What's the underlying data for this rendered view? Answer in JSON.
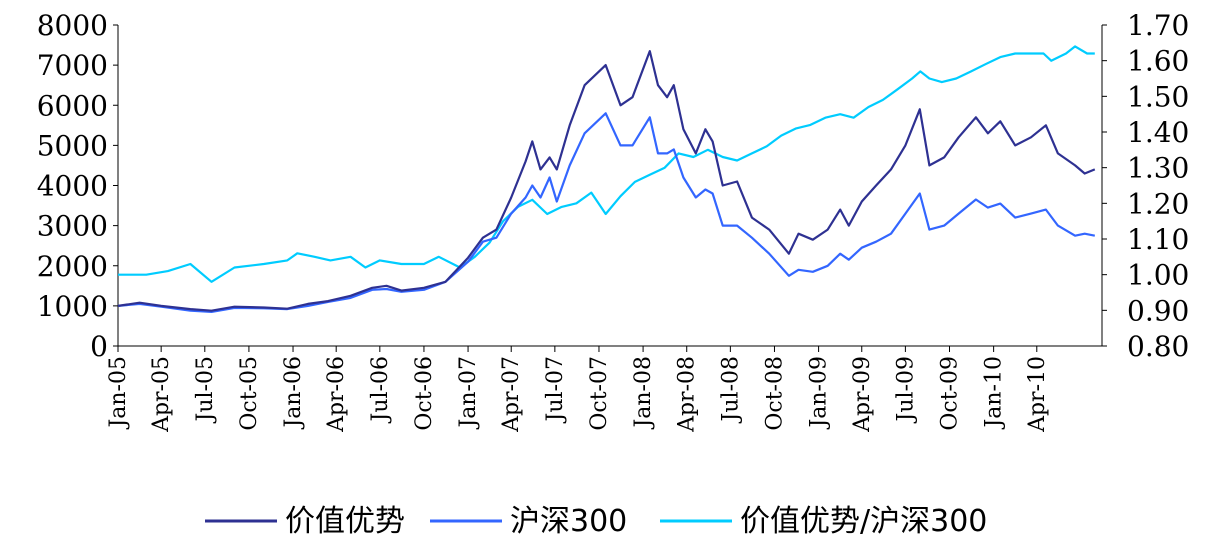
{
  "chart_data": {
    "type": "line",
    "title": "",
    "xlabel": "",
    "ylabel": "",
    "x_ticks": [
      "Jan-05",
      "Apr-05",
      "Jul-05",
      "Oct-05",
      "Jan-06",
      "Apr-06",
      "Jul-06",
      "Oct-06",
      "Jan-07",
      "Apr-07",
      "Jul-07",
      "Oct-07",
      "Jan-08",
      "Apr-08",
      "Jul-08",
      "Oct-08",
      "Jan-09",
      "Apr-09",
      "Jul-09",
      "Oct-09",
      "Jan-10",
      "Apr-10"
    ],
    "x_range": [
      "2005-01-01",
      "2010-08-15"
    ],
    "y_left": {
      "ylim": [
        0,
        8000
      ],
      "ticks": [
        "0",
        "1000",
        "2000",
        "3000",
        "4000",
        "5000",
        "6000",
        "7000",
        "8000"
      ]
    },
    "y_right": {
      "ylim": [
        0.8,
        1.7
      ],
      "ticks": [
        "0.80",
        "0.90",
        "1.00",
        "1.10",
        "1.20",
        "1.30",
        "1.40",
        "1.50",
        "1.60",
        "1.70"
      ]
    },
    "grid": false,
    "legend_position": "bottom",
    "series": [
      {
        "name": "价值优势",
        "axis": "left",
        "color": "#2E3192",
        "points": [
          [
            "2005-01-01",
            1000
          ],
          [
            "2005-02-15",
            1080
          ],
          [
            "2005-04-01",
            1000
          ],
          [
            "2005-06-01",
            920
          ],
          [
            "2005-07-15",
            880
          ],
          [
            "2005-09-01",
            980
          ],
          [
            "2005-11-01",
            960
          ],
          [
            "2005-12-20",
            930
          ],
          [
            "2006-02-01",
            1050
          ],
          [
            "2006-03-15",
            1120
          ],
          [
            "2006-05-01",
            1250
          ],
          [
            "2006-06-15",
            1450
          ],
          [
            "2006-07-15",
            1500
          ],
          [
            "2006-08-15",
            1380
          ],
          [
            "2006-10-01",
            1450
          ],
          [
            "2006-11-15",
            1600
          ],
          [
            "2007-01-01",
            2200
          ],
          [
            "2007-02-01",
            2700
          ],
          [
            "2007-03-01",
            2900
          ],
          [
            "2007-04-01",
            3700
          ],
          [
            "2007-05-01",
            4600
          ],
          [
            "2007-05-15",
            5100
          ],
          [
            "2007-06-01",
            4400
          ],
          [
            "2007-06-20",
            4700
          ],
          [
            "2007-07-05",
            4400
          ],
          [
            "2007-08-01",
            5500
          ],
          [
            "2007-09-01",
            6500
          ],
          [
            "2007-10-15",
            7000
          ],
          [
            "2007-11-15",
            6000
          ],
          [
            "2007-12-10",
            6200
          ],
          [
            "2008-01-15",
            7350
          ],
          [
            "2008-02-01",
            6500
          ],
          [
            "2008-02-20",
            6200
          ],
          [
            "2008-03-05",
            6500
          ],
          [
            "2008-03-25",
            5400
          ],
          [
            "2008-04-20",
            4800
          ],
          [
            "2008-05-10",
            5400
          ],
          [
            "2008-05-25",
            5100
          ],
          [
            "2008-06-15",
            4000
          ],
          [
            "2008-07-15",
            4100
          ],
          [
            "2008-08-15",
            3200
          ],
          [
            "2008-09-20",
            2900
          ],
          [
            "2008-10-31",
            2300
          ],
          [
            "2008-11-20",
            2800
          ],
          [
            "2008-12-20",
            2650
          ],
          [
            "2009-01-20",
            2900
          ],
          [
            "2009-02-15",
            3400
          ],
          [
            "2009-03-05",
            3000
          ],
          [
            "2009-04-01",
            3600
          ],
          [
            "2009-05-01",
            4000
          ],
          [
            "2009-06-01",
            4400
          ],
          [
            "2009-07-01",
            5000
          ],
          [
            "2009-07-31",
            5900
          ],
          [
            "2009-08-20",
            4500
          ],
          [
            "2009-09-20",
            4700
          ],
          [
            "2009-10-20",
            5200
          ],
          [
            "2009-11-25",
            5700
          ],
          [
            "2009-12-20",
            5300
          ],
          [
            "2010-01-15",
            5600
          ],
          [
            "2010-02-15",
            5000
          ],
          [
            "2010-03-20",
            5200
          ],
          [
            "2010-04-20",
            5500
          ],
          [
            "2010-05-15",
            4800
          ],
          [
            "2010-06-20",
            4500
          ],
          [
            "2010-07-10",
            4300
          ],
          [
            "2010-07-31",
            4400
          ]
        ]
      },
      {
        "name": "沪深300",
        "axis": "left",
        "color": "#3366FF",
        "points": [
          [
            "2005-01-01",
            1000
          ],
          [
            "2005-02-15",
            1050
          ],
          [
            "2005-04-01",
            980
          ],
          [
            "2005-06-01",
            880
          ],
          [
            "2005-07-15",
            850
          ],
          [
            "2005-09-01",
            950
          ],
          [
            "2005-11-01",
            940
          ],
          [
            "2005-12-20",
            920
          ],
          [
            "2006-02-01",
            1000
          ],
          [
            "2006-03-15",
            1100
          ],
          [
            "2006-05-01",
            1200
          ],
          [
            "2006-06-15",
            1400
          ],
          [
            "2006-07-15",
            1420
          ],
          [
            "2006-08-15",
            1350
          ],
          [
            "2006-10-01",
            1400
          ],
          [
            "2006-11-15",
            1600
          ],
          [
            "2007-01-01",
            2100
          ],
          [
            "2007-02-01",
            2600
          ],
          [
            "2007-03-01",
            2700
          ],
          [
            "2007-04-01",
            3300
          ],
          [
            "2007-05-01",
            3700
          ],
          [
            "2007-05-15",
            4000
          ],
          [
            "2007-06-01",
            3700
          ],
          [
            "2007-06-20",
            4200
          ],
          [
            "2007-07-05",
            3600
          ],
          [
            "2007-08-01",
            4500
          ],
          [
            "2007-09-01",
            5300
          ],
          [
            "2007-10-15",
            5800
          ],
          [
            "2007-11-15",
            5000
          ],
          [
            "2007-12-10",
            5000
          ],
          [
            "2008-01-15",
            5700
          ],
          [
            "2008-02-01",
            4800
          ],
          [
            "2008-02-20",
            4800
          ],
          [
            "2008-03-05",
            4900
          ],
          [
            "2008-03-25",
            4200
          ],
          [
            "2008-04-20",
            3700
          ],
          [
            "2008-05-10",
            3900
          ],
          [
            "2008-05-25",
            3800
          ],
          [
            "2008-06-15",
            3000
          ],
          [
            "2008-07-15",
            3000
          ],
          [
            "2008-08-15",
            2700
          ],
          [
            "2008-09-20",
            2300
          ],
          [
            "2008-10-31",
            1750
          ],
          [
            "2008-11-20",
            1900
          ],
          [
            "2008-12-20",
            1850
          ],
          [
            "2009-01-20",
            2000
          ],
          [
            "2009-02-15",
            2300
          ],
          [
            "2009-03-05",
            2150
          ],
          [
            "2009-04-01",
            2450
          ],
          [
            "2009-05-01",
            2600
          ],
          [
            "2009-06-01",
            2800
          ],
          [
            "2009-07-01",
            3300
          ],
          [
            "2009-07-31",
            3800
          ],
          [
            "2009-08-20",
            2900
          ],
          [
            "2009-09-20",
            3000
          ],
          [
            "2009-10-20",
            3300
          ],
          [
            "2009-11-25",
            3650
          ],
          [
            "2009-12-20",
            3450
          ],
          [
            "2010-01-15",
            3550
          ],
          [
            "2010-02-15",
            3200
          ],
          [
            "2010-03-20",
            3300
          ],
          [
            "2010-04-20",
            3400
          ],
          [
            "2010-05-15",
            3000
          ],
          [
            "2010-06-20",
            2750
          ],
          [
            "2010-07-10",
            2800
          ],
          [
            "2010-07-31",
            2750
          ]
        ]
      },
      {
        "name": "价值优势/沪深300",
        "axis": "right",
        "color": "#00CCFF",
        "points": [
          [
            "2005-01-01",
            1.0
          ],
          [
            "2005-03-01",
            1.0
          ],
          [
            "2005-04-15",
            1.01
          ],
          [
            "2005-06-01",
            1.03
          ],
          [
            "2005-07-15",
            0.98
          ],
          [
            "2005-09-01",
            1.02
          ],
          [
            "2005-11-01",
            1.03
          ],
          [
            "2005-12-20",
            1.04
          ],
          [
            "2006-01-10",
            1.06
          ],
          [
            "2006-02-15",
            1.05
          ],
          [
            "2006-03-20",
            1.04
          ],
          [
            "2006-05-01",
            1.05
          ],
          [
            "2006-06-01",
            1.02
          ],
          [
            "2006-07-01",
            1.04
          ],
          [
            "2006-08-15",
            1.03
          ],
          [
            "2006-10-01",
            1.03
          ],
          [
            "2006-11-01",
            1.05
          ],
          [
            "2006-12-15",
            1.02
          ],
          [
            "2007-01-15",
            1.05
          ],
          [
            "2007-02-15",
            1.09
          ],
          [
            "2007-03-15",
            1.15
          ],
          [
            "2007-04-15",
            1.19
          ],
          [
            "2007-05-15",
            1.21
          ],
          [
            "2007-06-15",
            1.17
          ],
          [
            "2007-07-15",
            1.19
          ],
          [
            "2007-08-15",
            1.2
          ],
          [
            "2007-09-15",
            1.23
          ],
          [
            "2007-10-15",
            1.17
          ],
          [
            "2007-11-15",
            1.22
          ],
          [
            "2007-12-15",
            1.26
          ],
          [
            "2008-01-15",
            1.28
          ],
          [
            "2008-02-15",
            1.3
          ],
          [
            "2008-03-15",
            1.34
          ],
          [
            "2008-04-15",
            1.33
          ],
          [
            "2008-05-15",
            1.35
          ],
          [
            "2008-06-15",
            1.33
          ],
          [
            "2008-07-15",
            1.32
          ],
          [
            "2008-08-15",
            1.34
          ],
          [
            "2008-09-15",
            1.36
          ],
          [
            "2008-10-15",
            1.39
          ],
          [
            "2008-11-15",
            1.41
          ],
          [
            "2008-12-15",
            1.42
          ],
          [
            "2009-01-15",
            1.44
          ],
          [
            "2009-02-15",
            1.45
          ],
          [
            "2009-03-15",
            1.44
          ],
          [
            "2009-04-15",
            1.47
          ],
          [
            "2009-05-15",
            1.49
          ],
          [
            "2009-06-15",
            1.52
          ],
          [
            "2009-07-15",
            1.55
          ],
          [
            "2009-08-01",
            1.57
          ],
          [
            "2009-08-20",
            1.55
          ],
          [
            "2009-09-15",
            1.54
          ],
          [
            "2009-10-15",
            1.55
          ],
          [
            "2009-11-15",
            1.57
          ],
          [
            "2009-12-15",
            1.59
          ],
          [
            "2010-01-15",
            1.61
          ],
          [
            "2010-02-15",
            1.62
          ],
          [
            "2010-03-15",
            1.62
          ],
          [
            "2010-04-15",
            1.62
          ],
          [
            "2010-05-01",
            1.6
          ],
          [
            "2010-06-01",
            1.62
          ],
          [
            "2010-06-20",
            1.64
          ],
          [
            "2010-07-15",
            1.62
          ],
          [
            "2010-07-31",
            1.62
          ]
        ]
      }
    ]
  }
}
